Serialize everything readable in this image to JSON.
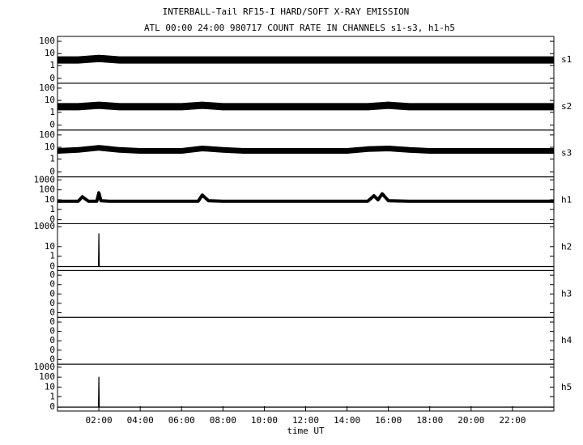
{
  "chart_data": [
    {
      "type": "line",
      "title": "INTERBALL-Tail RF15-I HARD/SOFT X-RAY EMISSION",
      "subtitle": "ATL 00:00 24:00 980717  COUNT RATE IN CHANNELS s1-s3, h1-h5",
      "yscale": "log",
      "xlim": [
        0,
        24
      ],
      "ylim": [
        -0.06,
        250
      ],
      "yticks": [
        0,
        1,
        10,
        100
      ],
      "x": [
        0,
        1,
        2,
        3,
        4,
        5,
        6,
        7,
        8,
        9,
        10,
        11,
        12,
        13,
        14,
        15,
        16,
        17,
        18,
        19,
        20,
        21,
        22,
        23,
        24
      ],
      "series": [
        {
          "name": "s1",
          "color": "#000000",
          "values": [
            3,
            3,
            4,
            3,
            3,
            3,
            3,
            3,
            3,
            3,
            3,
            3,
            3,
            3,
            3,
            3,
            3,
            3,
            3,
            3,
            3,
            3,
            3,
            3,
            3
          ]
        }
      ]
    },
    {
      "type": "line",
      "yscale": "log",
      "xlim": [
        0,
        24
      ],
      "ylim": [
        -0.06,
        250
      ],
      "yticks": [
        0,
        1,
        10,
        100
      ],
      "x": [
        0,
        1,
        2,
        3,
        4,
        5,
        6,
        7,
        8,
        9,
        10,
        11,
        12,
        13,
        14,
        15,
        16,
        17,
        18,
        19,
        20,
        21,
        22,
        23,
        24
      ],
      "series": [
        {
          "name": "s2",
          "color": "#000000",
          "values": [
            3,
            3,
            4,
            3,
            3,
            3,
            3,
            4,
            3,
            3,
            3,
            3,
            3,
            3,
            3,
            3,
            4,
            3,
            3,
            3,
            3,
            3,
            3,
            3,
            3
          ]
        }
      ]
    },
    {
      "type": "line",
      "yscale": "log",
      "xlim": [
        0,
        24
      ],
      "ylim": [
        -0.06,
        250
      ],
      "yticks": [
        0,
        1,
        10,
        100
      ],
      "x": [
        0,
        1,
        2,
        3,
        4,
        5,
        6,
        7,
        8,
        9,
        10,
        11,
        12,
        13,
        14,
        15,
        16,
        17,
        18,
        19,
        20,
        21,
        22,
        23,
        24
      ],
      "series": [
        {
          "name": "s3",
          "color": "#000000",
          "values": [
            5,
            6,
            9,
            6,
            5,
            5,
            5,
            8,
            6,
            5,
            5,
            5,
            5,
            5,
            5,
            7,
            8,
            6,
            5,
            5,
            5,
            5,
            5,
            5,
            5
          ]
        }
      ]
    },
    {
      "type": "line",
      "yscale": "log",
      "xlim": [
        0,
        24
      ],
      "ylim": [
        -0.06,
        2000
      ],
      "yticks": [
        0,
        1,
        10,
        100,
        1000
      ],
      "x": [
        0,
        0.5,
        1,
        1.2,
        1.5,
        1.9,
        2,
        2.1,
        2.5,
        3,
        4,
        5,
        6,
        6.8,
        7,
        7.3,
        8,
        9,
        10,
        11,
        12,
        13,
        14,
        15,
        15.3,
        15.5,
        15.7,
        16,
        17,
        18,
        19,
        20,
        21,
        22,
        23,
        24
      ],
      "series": [
        {
          "name": "h1",
          "color": "#000000",
          "values": [
            7,
            7,
            7,
            20,
            7,
            7,
            50,
            8,
            7,
            7,
            7,
            7,
            7,
            7,
            30,
            8,
            7,
            7,
            7,
            7,
            7,
            7,
            7,
            7,
            25,
            10,
            40,
            8,
            7,
            7,
            7,
            7,
            7,
            7,
            7,
            7
          ]
        }
      ]
    },
    {
      "type": "line",
      "yscale": "log",
      "xlim": [
        0,
        24
      ],
      "ylim": [
        -0.06,
        2000
      ],
      "yticks": [
        0,
        1,
        10,
        1000
      ],
      "x": [
        0,
        1.98,
        2,
        2.02,
        24
      ],
      "series": [
        {
          "name": "h2",
          "color": "#000000",
          "values": [
            0,
            0,
            200,
            0,
            0
          ]
        }
      ]
    },
    {
      "type": "line",
      "yscale": "linear",
      "xlim": [
        0,
        24
      ],
      "ylim": [
        -0.5,
        0.5
      ],
      "yticks": [
        {
          "value": -0.4,
          "label": "0"
        },
        {
          "value": -0.2,
          "label": "0"
        },
        {
          "value": 0,
          "label": "0"
        },
        {
          "value": 0.2,
          "label": "0"
        },
        {
          "value": 0.4,
          "label": "0"
        }
      ],
      "x": [],
      "series": [
        {
          "name": "h3",
          "color": "#000000",
          "values": []
        }
      ]
    },
    {
      "type": "line",
      "yscale": "linear",
      "xlim": [
        0,
        24
      ],
      "ylim": [
        -0.5,
        0.5
      ],
      "yticks": [
        {
          "value": -0.4,
          "label": "0"
        },
        {
          "value": -0.2,
          "label": "0"
        },
        {
          "value": 0,
          "label": "0"
        },
        {
          "value": 0.2,
          "label": "0"
        },
        {
          "value": 0.4,
          "label": "0"
        }
      ],
      "x": [],
      "series": [
        {
          "name": "h4",
          "color": "#000000",
          "values": []
        }
      ]
    },
    {
      "type": "line",
      "yscale": "log",
      "xlim": [
        0,
        24
      ],
      "ylim": [
        -0.06,
        2000
      ],
      "yticks": [
        0,
        1,
        10,
        100,
        1000
      ],
      "x": [
        0,
        1.98,
        2,
        2.02,
        24
      ],
      "series": [
        {
          "name": "h5",
          "color": "#000000",
          "values": [
            0,
            0,
            100,
            0,
            0
          ]
        }
      ],
      "xlabel": "time UT",
      "xticks": [
        {
          "value": 2,
          "label": "02:00"
        },
        {
          "value": 4,
          "label": "04:00"
        },
        {
          "value": 6,
          "label": "06:00"
        },
        {
          "value": 8,
          "label": "08:00"
        },
        {
          "value": 10,
          "label": "10:00"
        },
        {
          "value": 12,
          "label": "12:00"
        },
        {
          "value": 14,
          "label": "14:00"
        },
        {
          "value": 16,
          "label": "16:00"
        },
        {
          "value": 18,
          "label": "18:00"
        },
        {
          "value": 20,
          "label": "20:00"
        },
        {
          "value": 22,
          "label": "22:00"
        }
      ]
    }
  ]
}
